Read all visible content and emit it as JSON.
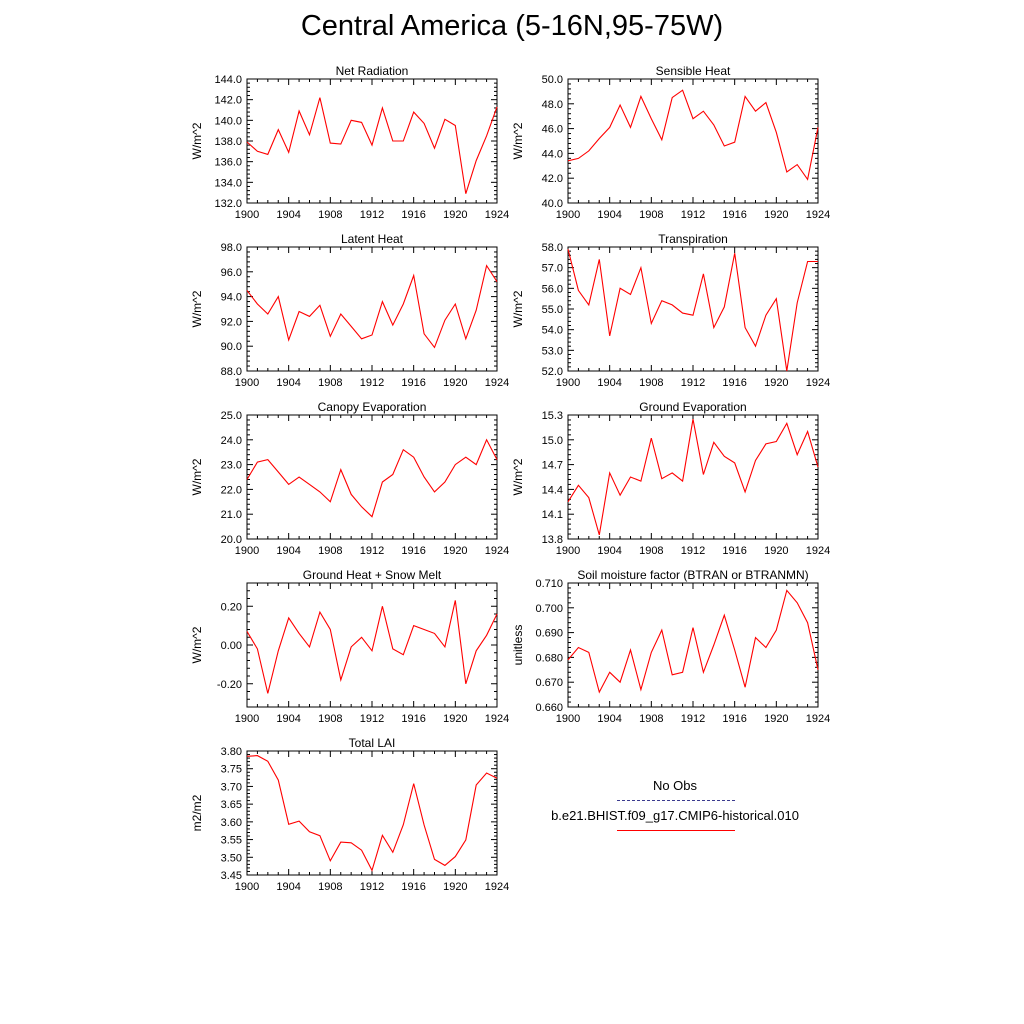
{
  "title": "Central America (5-16N,95-75W)",
  "colors": {
    "model": "#ff0000",
    "obs": "#3b3b8f",
    "axis": "#000000"
  },
  "chart_data": [
    {
      "type": "line",
      "title": "Net Radiation",
      "ylabel": "W/m^2",
      "ylim": [
        132,
        144
      ],
      "yticks": [
        "132.0",
        "134.0",
        "136.0",
        "138.0",
        "140.0",
        "142.0",
        "144.0"
      ],
      "ytick_values": [
        132,
        134,
        136,
        138,
        140,
        142,
        144
      ],
      "xticks": [
        "1900",
        "1904",
        "1908",
        "1912",
        "1916",
        "1920",
        "1924"
      ],
      "x": [
        1900,
        1901,
        1902,
        1903,
        1904,
        1905,
        1906,
        1907,
        1908,
        1909,
        1910,
        1911,
        1912,
        1913,
        1914,
        1915,
        1916,
        1917,
        1918,
        1919,
        1920,
        1921,
        1922,
        1923,
        1924
      ],
      "series": [
        {
          "values": [
            137.9,
            137.0,
            136.7,
            139.1,
            136.9,
            140.9,
            138.6,
            142.2,
            137.8,
            137.7,
            140.0,
            139.8,
            137.6,
            141.2,
            138.0,
            138.0,
            140.8,
            139.7,
            137.3,
            140.1,
            139.5,
            132.9,
            136.1,
            138.5,
            141.3
          ]
        }
      ]
    },
    {
      "type": "line",
      "title": "Sensible Heat",
      "ylabel": "W/m^2",
      "ylim": [
        40,
        50
      ],
      "yticks": [
        "40.0",
        "42.0",
        "44.0",
        "46.0",
        "48.0",
        "50.0"
      ],
      "ytick_values": [
        40,
        42,
        44,
        46,
        48,
        50
      ],
      "xticks": [
        "1900",
        "1904",
        "1908",
        "1912",
        "1916",
        "1920",
        "1924"
      ],
      "x": [
        1900,
        1901,
        1902,
        1903,
        1904,
        1905,
        1906,
        1907,
        1908,
        1909,
        1910,
        1911,
        1912,
        1913,
        1914,
        1915,
        1916,
        1917,
        1918,
        1919,
        1920,
        1921,
        1922,
        1923,
        1924
      ],
      "series": [
        {
          "values": [
            43.4,
            43.6,
            44.2,
            45.2,
            46.1,
            47.9,
            46.1,
            48.6,
            46.8,
            45.1,
            48.5,
            49.1,
            46.8,
            47.4,
            46.3,
            44.6,
            44.9,
            48.6,
            47.4,
            48.1,
            45.7,
            42.5,
            43.1,
            41.9,
            46.1
          ]
        }
      ]
    },
    {
      "type": "line",
      "title": "Latent Heat",
      "ylabel": "W/m^2",
      "ylim": [
        88,
        98
      ],
      "yticks": [
        "88.0",
        "90.0",
        "92.0",
        "94.0",
        "96.0",
        "98.0"
      ],
      "ytick_values": [
        88,
        90,
        92,
        94,
        96,
        98
      ],
      "xticks": [
        "1900",
        "1904",
        "1908",
        "1912",
        "1916",
        "1920",
        "1924"
      ],
      "x": [
        1900,
        1901,
        1902,
        1903,
        1904,
        1905,
        1906,
        1907,
        1908,
        1909,
        1910,
        1911,
        1912,
        1913,
        1914,
        1915,
        1916,
        1917,
        1918,
        1919,
        1920,
        1921,
        1922,
        1923,
        1924
      ],
      "series": [
        {
          "values": [
            94.5,
            93.4,
            92.6,
            94.0,
            90.5,
            92.8,
            92.4,
            93.3,
            90.8,
            92.6,
            91.6,
            90.6,
            90.9,
            93.6,
            91.7,
            93.4,
            95.7,
            91.0,
            89.9,
            92.1,
            93.4,
            90.6,
            92.9,
            96.5,
            95.2
          ]
        }
      ]
    },
    {
      "type": "line",
      "title": "Transpiration",
      "ylabel": "W/m^2",
      "ylim": [
        52,
        58
      ],
      "yticks": [
        "52.0",
        "53.0",
        "54.0",
        "55.0",
        "56.0",
        "57.0",
        "58.0"
      ],
      "ytick_values": [
        52,
        53,
        54,
        55,
        56,
        57,
        58
      ],
      "xticks": [
        "1900",
        "1904",
        "1908",
        "1912",
        "1916",
        "1920",
        "1924"
      ],
      "x": [
        1900,
        1901,
        1902,
        1903,
        1904,
        1905,
        1906,
        1907,
        1908,
        1909,
        1910,
        1911,
        1912,
        1913,
        1914,
        1915,
        1916,
        1917,
        1918,
        1919,
        1920,
        1921,
        1922,
        1923,
        1924
      ],
      "series": [
        {
          "values": [
            57.9,
            55.9,
            55.2,
            57.4,
            53.7,
            56.0,
            55.7,
            57.0,
            54.3,
            55.4,
            55.2,
            54.8,
            54.7,
            56.7,
            54.1,
            55.1,
            57.7,
            54.1,
            53.2,
            54.7,
            55.5,
            52.0,
            55.3,
            57.3,
            57.3
          ]
        }
      ]
    },
    {
      "type": "line",
      "title": "Canopy Evaporation",
      "ylabel": "W/m^2",
      "ylim": [
        20,
        25
      ],
      "yticks": [
        "20.0",
        "21.0",
        "22.0",
        "23.0",
        "24.0",
        "25.0"
      ],
      "ytick_values": [
        20,
        21,
        22,
        23,
        24,
        25
      ],
      "xticks": [
        "1900",
        "1904",
        "1908",
        "1912",
        "1916",
        "1920",
        "1924"
      ],
      "x": [
        1900,
        1901,
        1902,
        1903,
        1904,
        1905,
        1906,
        1907,
        1908,
        1909,
        1910,
        1911,
        1912,
        1913,
        1914,
        1915,
        1916,
        1917,
        1918,
        1919,
        1920,
        1921,
        1922,
        1923,
        1924
      ],
      "series": [
        {
          "values": [
            22.4,
            23.1,
            23.2,
            22.7,
            22.2,
            22.5,
            22.2,
            21.9,
            21.5,
            22.8,
            21.8,
            21.3,
            20.9,
            22.3,
            22.6,
            23.6,
            23.3,
            22.5,
            21.9,
            22.3,
            23.0,
            23.3,
            23.0,
            24.0,
            23.2
          ]
        }
      ]
    },
    {
      "type": "line",
      "title": "Ground Evaporation",
      "ylabel": "W/m^2",
      "ylim": [
        13.8,
        15.3
      ],
      "yticks": [
        "13.8",
        "14.1",
        "14.4",
        "14.7",
        "15.0",
        "15.3"
      ],
      "ytick_values": [
        13.8,
        14.1,
        14.4,
        14.7,
        15.0,
        15.3
      ],
      "xticks": [
        "1900",
        "1904",
        "1908",
        "1912",
        "1916",
        "1920",
        "1924"
      ],
      "x": [
        1900,
        1901,
        1902,
        1903,
        1904,
        1905,
        1906,
        1907,
        1908,
        1909,
        1910,
        1911,
        1912,
        1913,
        1914,
        1915,
        1916,
        1917,
        1918,
        1919,
        1920,
        1921,
        1922,
        1923,
        1924
      ],
      "series": [
        {
          "values": [
            14.25,
            14.45,
            14.3,
            13.85,
            14.6,
            14.33,
            14.55,
            14.5,
            15.02,
            14.53,
            14.6,
            14.5,
            15.25,
            14.58,
            14.97,
            14.8,
            14.72,
            14.37,
            14.75,
            14.95,
            14.98,
            15.2,
            14.82,
            15.1,
            14.67
          ]
        }
      ]
    },
    {
      "type": "line",
      "title": "Ground Heat + Snow Melt",
      "ylabel": "W/m^2",
      "ylim": [
        -0.32,
        0.32
      ],
      "yticks": [
        "-0.20",
        "0.00",
        "0.20"
      ],
      "ytick_values": [
        -0.2,
        0.0,
        0.2
      ],
      "xticks": [
        "1900",
        "1904",
        "1908",
        "1912",
        "1916",
        "1920",
        "1924"
      ],
      "x": [
        1900,
        1901,
        1902,
        1903,
        1904,
        1905,
        1906,
        1907,
        1908,
        1909,
        1910,
        1911,
        1912,
        1913,
        1914,
        1915,
        1916,
        1917,
        1918,
        1919,
        1920,
        1921,
        1922,
        1923,
        1924
      ],
      "series": [
        {
          "values": [
            0.07,
            -0.02,
            -0.25,
            -0.03,
            0.14,
            0.06,
            -0.01,
            0.17,
            0.08,
            -0.18,
            -0.01,
            0.04,
            -0.03,
            0.2,
            -0.02,
            -0.05,
            0.1,
            0.08,
            0.06,
            -0.01,
            0.23,
            -0.2,
            -0.03,
            0.05,
            0.16
          ]
        }
      ]
    },
    {
      "type": "line",
      "title": "Soil moisture factor (BTRAN or BTRANMN)",
      "ylabel": "unitless",
      "ylim": [
        0.66,
        0.71
      ],
      "yticks": [
        "0.660",
        "0.670",
        "0.680",
        "0.690",
        "0.700",
        "0.710"
      ],
      "ytick_values": [
        0.66,
        0.67,
        0.68,
        0.69,
        0.7,
        0.71
      ],
      "xticks": [
        "1900",
        "1904",
        "1908",
        "1912",
        "1916",
        "1920",
        "1924"
      ],
      "x": [
        1900,
        1901,
        1902,
        1903,
        1904,
        1905,
        1906,
        1907,
        1908,
        1909,
        1910,
        1911,
        1912,
        1913,
        1914,
        1915,
        1916,
        1917,
        1918,
        1919,
        1920,
        1921,
        1922,
        1923,
        1924
      ],
      "series": [
        {
          "values": [
            0.679,
            0.684,
            0.682,
            0.666,
            0.674,
            0.67,
            0.683,
            0.667,
            0.682,
            0.691,
            0.673,
            0.674,
            0.692,
            0.674,
            0.685,
            0.697,
            0.683,
            0.668,
            0.688,
            0.684,
            0.691,
            0.707,
            0.702,
            0.694,
            0.675
          ]
        }
      ]
    },
    {
      "type": "line",
      "title": "Total LAI",
      "ylabel": "m2/m2",
      "ylim": [
        3.45,
        3.8
      ],
      "yticks": [
        "3.45",
        "3.50",
        "3.55",
        "3.60",
        "3.65",
        "3.70",
        "3.75",
        "3.80"
      ],
      "ytick_values": [
        3.45,
        3.5,
        3.55,
        3.6,
        3.65,
        3.7,
        3.75,
        3.8
      ],
      "xticks": [
        "1900",
        "1904",
        "1908",
        "1912",
        "1916",
        "1920",
        "1924"
      ],
      "x": [
        1900,
        1901,
        1902,
        1903,
        1904,
        1905,
        1906,
        1907,
        1908,
        1909,
        1910,
        1911,
        1912,
        1913,
        1914,
        1915,
        1916,
        1917,
        1918,
        1919,
        1920,
        1921,
        1922,
        1923,
        1924
      ],
      "series": [
        {
          "values": [
            3.785,
            3.787,
            3.771,
            3.718,
            3.593,
            3.602,
            3.572,
            3.561,
            3.49,
            3.543,
            3.541,
            3.52,
            3.463,
            3.562,
            3.514,
            3.592,
            3.708,
            3.591,
            3.494,
            3.477,
            3.502,
            3.549,
            3.704,
            3.738,
            3.723
          ]
        }
      ]
    }
  ],
  "legend": {
    "items": [
      {
        "label": "No Obs",
        "style": "dashed"
      },
      {
        "label": "b.e21.BHIST.f09_g17.CMIP6-historical.010",
        "style": "solid"
      }
    ]
  }
}
